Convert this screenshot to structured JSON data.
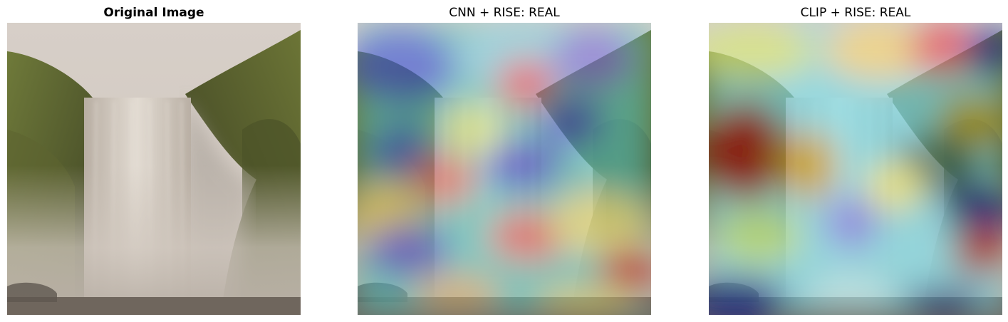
{
  "panels": [
    {
      "title": "Original Image",
      "image": "waterfall-photo"
    },
    {
      "title": "CNN + RISE: REAL",
      "image": "waterfall-rise-saliency-overlay",
      "colormap": "jet"
    },
    {
      "title": "CLIP + RISE: REAL",
      "image": "waterfall-rise-saliency-overlay",
      "colormap": "jet"
    }
  ]
}
